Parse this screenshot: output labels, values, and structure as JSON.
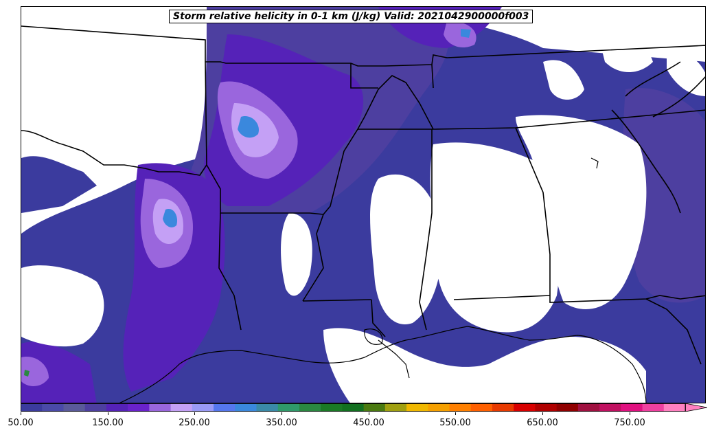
{
  "title": "Storm relative helicity in 0-1 km (J/kg) Valid: 2021042900000f003",
  "colorbar": {
    "min": 50,
    "max": 800,
    "step": 25,
    "extend": "max",
    "tick_labels": [
      "50.00",
      "150.00",
      "250.00",
      "350.00",
      "450.00",
      "550.00",
      "650.00",
      "750.00"
    ],
    "colors": [
      "#3b3b9e",
      "#4a4aa8",
      "#5a5a9a",
      "#4d3fa0",
      "#5522b8",
      "#6a22cc",
      "#9a66dd",
      "#c4a0f5",
      "#9a9af5",
      "#5577ee",
      "#3a88dd",
      "#3a8aa8",
      "#2f9a6a",
      "#2a8840",
      "#1a7a25",
      "#127020",
      "#4a7a10",
      "#a0a010",
      "#f0b800",
      "#f5a000",
      "#ff8000",
      "#ff6000",
      "#e83a00",
      "#d80000",
      "#b00000",
      "#900000",
      "#a01040",
      "#c01060",
      "#e01080",
      "#f040a0",
      "#ff80c0"
    ]
  },
  "legend_colors": {
    "low": "#3b3b9e",
    "medium": "#5522b8",
    "high": "#c4a0f5",
    "peak": "#3a88dd",
    "green": "#2a8840"
  }
}
